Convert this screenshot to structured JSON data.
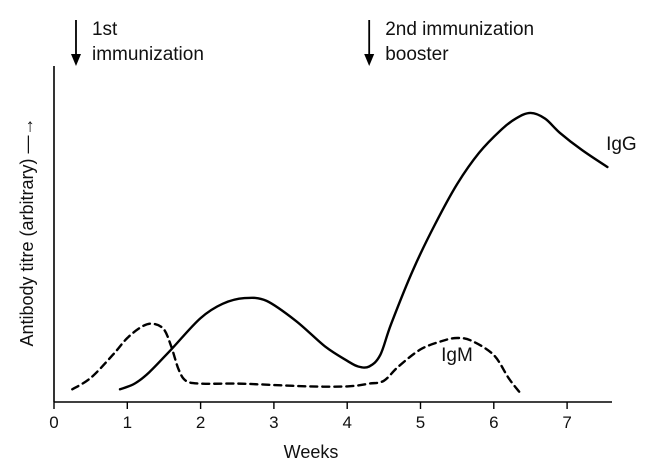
{
  "chart_data": {
    "type": "line",
    "title": "",
    "xlabel": "Weeks",
    "ylabel": "Antibody titre (arbitrary) —→",
    "xlim": [
      0,
      7.6
    ],
    "ylim": [
      0,
      1
    ],
    "x_ticks": [
      "0",
      "1",
      "2",
      "3",
      "4",
      "5",
      "6",
      "7"
    ],
    "y_ticks": [],
    "grid": false,
    "legend": "none",
    "series": [
      {
        "name": "IgG",
        "style": "solid",
        "color": "#000000",
        "x": [
          0.9,
          1.1,
          1.3,
          1.6,
          2.0,
          2.3,
          2.6,
          2.9,
          3.3,
          3.7,
          4.0,
          4.15,
          4.3,
          4.45,
          4.6,
          4.9,
          5.2,
          5.5,
          5.8,
          6.1,
          6.3,
          6.5,
          6.7,
          6.9,
          7.2,
          7.55
        ],
        "y": [
          0.02,
          0.04,
          0.08,
          0.16,
          0.27,
          0.32,
          0.34,
          0.33,
          0.26,
          0.17,
          0.12,
          0.1,
          0.1,
          0.14,
          0.25,
          0.44,
          0.6,
          0.74,
          0.85,
          0.93,
          0.97,
          0.99,
          0.97,
          0.92,
          0.86,
          0.8
        ]
      },
      {
        "name": "IgM",
        "style": "dashed",
        "color": "#000000",
        "x": [
          0.25,
          0.5,
          0.8,
          1.0,
          1.2,
          1.35,
          1.5,
          1.6,
          1.7,
          1.8,
          2.0,
          2.5,
          3.0,
          3.5,
          4.0,
          4.3,
          4.5,
          4.7,
          5.0,
          5.3,
          5.5,
          5.7,
          6.0,
          6.2,
          6.35
        ],
        "y": [
          0.02,
          0.06,
          0.14,
          0.2,
          0.24,
          0.25,
          0.23,
          0.17,
          0.09,
          0.05,
          0.04,
          0.04,
          0.035,
          0.03,
          0.03,
          0.04,
          0.05,
          0.1,
          0.16,
          0.19,
          0.2,
          0.19,
          0.14,
          0.06,
          0.01
        ]
      }
    ],
    "annotations": [
      {
        "id": "first",
        "week": 0.3,
        "lines": [
          "1st",
          "immunization"
        ]
      },
      {
        "id": "second",
        "week": 4.3,
        "lines": [
          "2nd immunization",
          "booster"
        ]
      }
    ],
    "series_labels": [
      {
        "name": "IgG",
        "x": 7.45,
        "y": 0.88
      },
      {
        "name": "IgM",
        "x": 5.2,
        "y": 0.14
      }
    ]
  }
}
